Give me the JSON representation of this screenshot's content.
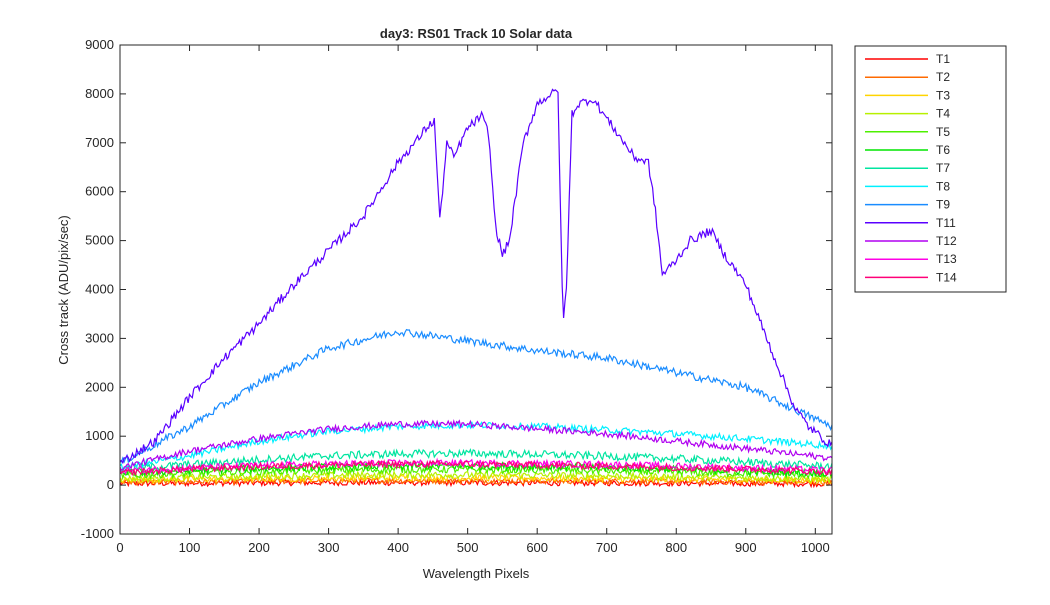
{
  "chart_data": {
    "type": "line",
    "title": "day3: RS01  Track 10 Solar data",
    "xlabel": "Wavelength Pixels",
    "ylabel": "Cross track (ADU/pix/sec)",
    "xlim": [
      0,
      1024
    ],
    "ylim": [
      -1000,
      9000
    ],
    "xticks": [
      0,
      100,
      200,
      300,
      400,
      500,
      600,
      700,
      800,
      900,
      1000
    ],
    "yticks": [
      -1000,
      0,
      1000,
      2000,
      3000,
      4000,
      5000,
      6000,
      7000,
      8000,
      9000
    ],
    "grid": false,
    "legend_position": "outside-top-right",
    "series": [
      {
        "name": "T1",
        "color": "#ff0000",
        "x": [
          0,
          100,
          200,
          300,
          400,
          500,
          600,
          700,
          800,
          900,
          1024
        ],
        "values": [
          30,
          40,
          45,
          50,
          50,
          50,
          45,
          45,
          40,
          35,
          30
        ],
        "noise": 60
      },
      {
        "name": "T2",
        "color": "#ff6a00",
        "x": [
          0,
          100,
          200,
          300,
          400,
          500,
          600,
          700,
          800,
          900,
          1024
        ],
        "values": [
          60,
          70,
          80,
          90,
          90,
          90,
          85,
          80,
          75,
          65,
          55
        ],
        "noise": 60
      },
      {
        "name": "T3",
        "color": "#ffd400",
        "x": [
          0,
          100,
          200,
          300,
          400,
          500,
          600,
          700,
          800,
          900,
          1024
        ],
        "values": [
          100,
          120,
          130,
          140,
          150,
          150,
          140,
          130,
          120,
          110,
          90
        ],
        "noise": 65
      },
      {
        "name": "T4",
        "color": "#b8f000",
        "x": [
          0,
          100,
          200,
          300,
          400,
          500,
          600,
          700,
          800,
          900,
          1024
        ],
        "values": [
          130,
          160,
          180,
          200,
          210,
          210,
          200,
          190,
          170,
          150,
          120
        ],
        "noise": 70
      },
      {
        "name": "T5",
        "color": "#4ef000",
        "x": [
          0,
          100,
          200,
          300,
          400,
          500,
          600,
          700,
          800,
          900,
          1024
        ],
        "values": [
          200,
          240,
          280,
          300,
          320,
          320,
          310,
          290,
          270,
          240,
          200
        ],
        "noise": 75
      },
      {
        "name": "T6",
        "color": "#00e600",
        "x": [
          0,
          100,
          200,
          300,
          400,
          500,
          600,
          700,
          800,
          900,
          1024
        ],
        "values": [
          250,
          300,
          340,
          370,
          390,
          390,
          380,
          360,
          330,
          290,
          240
        ],
        "noise": 75
      },
      {
        "name": "T7",
        "color": "#00e5a0",
        "x": [
          0,
          100,
          200,
          300,
          400,
          500,
          600,
          700,
          800,
          900,
          1024
        ],
        "values": [
          330,
          420,
          520,
          600,
          640,
          650,
          630,
          590,
          540,
          470,
          380
        ],
        "noise": 80
      },
      {
        "name": "T8",
        "color": "#00f0ff",
        "x": [
          0,
          100,
          200,
          300,
          400,
          500,
          600,
          700,
          800,
          900,
          1024
        ],
        "values": [
          350,
          600,
          900,
          1100,
          1200,
          1230,
          1200,
          1130,
          1050,
          950,
          800
        ],
        "noise": 70
      },
      {
        "name": "T9",
        "color": "#1a8cff",
        "x": [
          0,
          100,
          200,
          300,
          400,
          500,
          600,
          700,
          800,
          900,
          1024
        ],
        "values": [
          450,
          1200,
          2100,
          2800,
          3150,
          2950,
          2750,
          2600,
          2300,
          2000,
          1200
        ],
        "noise": 80
      },
      {
        "name": "T11",
        "color": "#5a00ff",
        "x": [
          0,
          50,
          100,
          150,
          200,
          250,
          300,
          350,
          400,
          430,
          440,
          452,
          460,
          470,
          480,
          500,
          520,
          530,
          540,
          550,
          560,
          580,
          600,
          620,
          630,
          637,
          642,
          650,
          660,
          680,
          700,
          720,
          740,
          760,
          770,
          780,
          800,
          820,
          850,
          870,
          900,
          930,
          950,
          970,
          990,
          1024
        ],
        "values": [
          450,
          900,
          1800,
          2600,
          3300,
          4100,
          4800,
          5500,
          6600,
          7100,
          7300,
          7450,
          5400,
          7000,
          6700,
          7300,
          7550,
          7200,
          5300,
          4700,
          5000,
          7000,
          7800,
          8000,
          8050,
          3300,
          4000,
          7600,
          7800,
          7900,
          7500,
          7100,
          6700,
          6600,
          5600,
          4300,
          4600,
          5000,
          5200,
          4700,
          4100,
          3000,
          2300,
          1600,
          1200,
          800
        ],
        "noise": 90
      },
      {
        "name": "T12",
        "color": "#b000f0",
        "x": [
          0,
          100,
          200,
          300,
          400,
          500,
          600,
          700,
          800,
          900,
          1024
        ],
        "values": [
          350,
          700,
          950,
          1150,
          1250,
          1250,
          1150,
          1050,
          900,
          750,
          550
        ],
        "noise": 65
      },
      {
        "name": "T13",
        "color": "#ff00e6",
        "x": [
          0,
          100,
          200,
          300,
          400,
          500,
          600,
          700,
          800,
          900,
          1024
        ],
        "values": [
          300,
          350,
          400,
          430,
          450,
          450,
          440,
          420,
          390,
          350,
          300
        ],
        "noise": 70
      },
      {
        "name": "T14",
        "color": "#ff0078",
        "x": [
          0,
          100,
          200,
          300,
          400,
          500,
          600,
          700,
          800,
          900,
          1024
        ],
        "values": [
          250,
          330,
          380,
          410,
          430,
          430,
          410,
          390,
          360,
          330,
          270
        ],
        "noise": 70
      }
    ]
  }
}
